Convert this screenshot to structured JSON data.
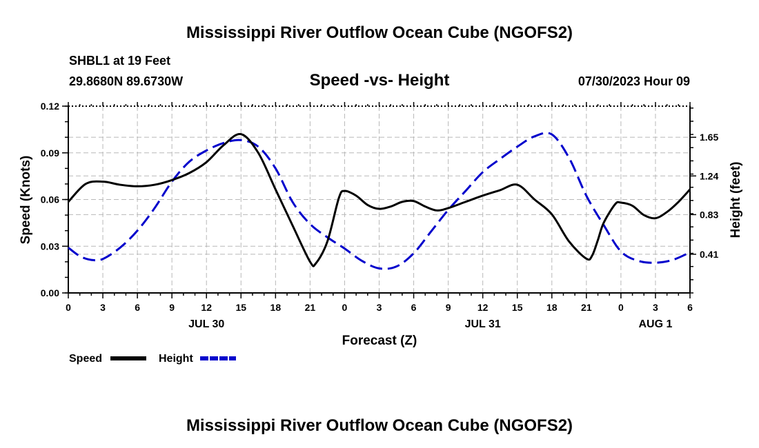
{
  "chart_data": {
    "type": "line",
    "title": "Mississippi River Outflow Ocean Cube (NGOFS2)",
    "station": "SHBL1 at 19 Feet",
    "location": "29.8680N  89.6730W",
    "subtitle": "Speed -vs- Height",
    "timestamp": "07/30/2023 Hour 09",
    "xlabel": "Forecast (Z)",
    "ylabel": "Speed (Knots)",
    "y2label": "Height (feet)",
    "x_tick_labels": [
      "0",
      "3",
      "6",
      "9",
      "12",
      "15",
      "18",
      "21",
      "0",
      "3",
      "6",
      "9",
      "12",
      "15",
      "18",
      "21",
      "0",
      "3",
      "6"
    ],
    "date_labels": [
      {
        "label": "JUL 30",
        "hour": 12
      },
      {
        "label": "JUL 31",
        "hour": 36
      },
      {
        "label": "AUG 1",
        "hour": 51
      }
    ],
    "xlim": [
      0,
      54
    ],
    "ylim": [
      0,
      0.12
    ],
    "y_ticks": [
      "0.00",
      "0.03",
      "0.06",
      "0.09",
      "0.12"
    ],
    "y2lim": [
      0,
      1.98
    ],
    "y2_ticks": [
      "0.41",
      "0.83",
      "1.24",
      "1.65"
    ],
    "grid": true,
    "legend_position": "bottom-left",
    "series": [
      {
        "name": "Speed",
        "axis": "left",
        "color": "#000000",
        "dash": "solid",
        "x": [
          0,
          1.5,
          3,
          4.5,
          6,
          7.5,
          9,
          10.5,
          12,
          13.5,
          15,
          16.5,
          18,
          19.5,
          21,
          21.5,
          22.5,
          23.5,
          24,
          25,
          26,
          27,
          28,
          29,
          30,
          31,
          32,
          33,
          34.5,
          36,
          37.5,
          39,
          40.5,
          42,
          43.5,
          45,
          45.5,
          46,
          46.5,
          47.5,
          48,
          49,
          50,
          51,
          52,
          53,
          54
        ],
        "y": [
          0.0585,
          0.07,
          0.0715,
          0.0695,
          0.0685,
          0.0695,
          0.0725,
          0.077,
          0.084,
          0.095,
          0.102,
          0.09,
          0.0665,
          0.043,
          0.02,
          0.019,
          0.033,
          0.061,
          0.0655,
          0.0625,
          0.0565,
          0.054,
          0.0555,
          0.0585,
          0.059,
          0.0555,
          0.053,
          0.0545,
          0.0585,
          0.0625,
          0.066,
          0.0695,
          0.06,
          0.0505,
          0.033,
          0.022,
          0.024,
          0.034,
          0.045,
          0.057,
          0.058,
          0.056,
          0.05,
          0.048,
          0.052,
          0.0585,
          0.0665
        ]
      },
      {
        "name": "Height",
        "axis": "right",
        "color": "#0000cc",
        "dash": "dashed",
        "x": [
          0,
          1,
          2,
          3,
          4.5,
          6,
          7.5,
          9,
          10.5,
          12,
          13.5,
          15,
          16.5,
          18,
          19.5,
          21,
          22.5,
          24,
          25.5,
          27,
          28.5,
          30,
          31.5,
          33,
          34.5,
          36,
          37.5,
          39,
          40.5,
          42,
          43.5,
          45,
          46.5,
          48,
          49.5,
          51,
          52.5,
          54
        ],
        "y": [
          0.48,
          0.39,
          0.35,
          0.36,
          0.48,
          0.66,
          0.9,
          1.18,
          1.39,
          1.51,
          1.59,
          1.62,
          1.55,
          1.32,
          0.96,
          0.73,
          0.59,
          0.47,
          0.34,
          0.26,
          0.28,
          0.42,
          0.65,
          0.88,
          1.08,
          1.28,
          1.42,
          1.55,
          1.66,
          1.68,
          1.43,
          1.03,
          0.72,
          0.44,
          0.34,
          0.32,
          0.35,
          0.43
        ]
      }
    ]
  },
  "legend": {
    "speed_label": "Speed",
    "height_label": "Height"
  },
  "footer": {
    "repeat_title": "Mississippi River Outflow Ocean Cube (NGOFS2)"
  }
}
